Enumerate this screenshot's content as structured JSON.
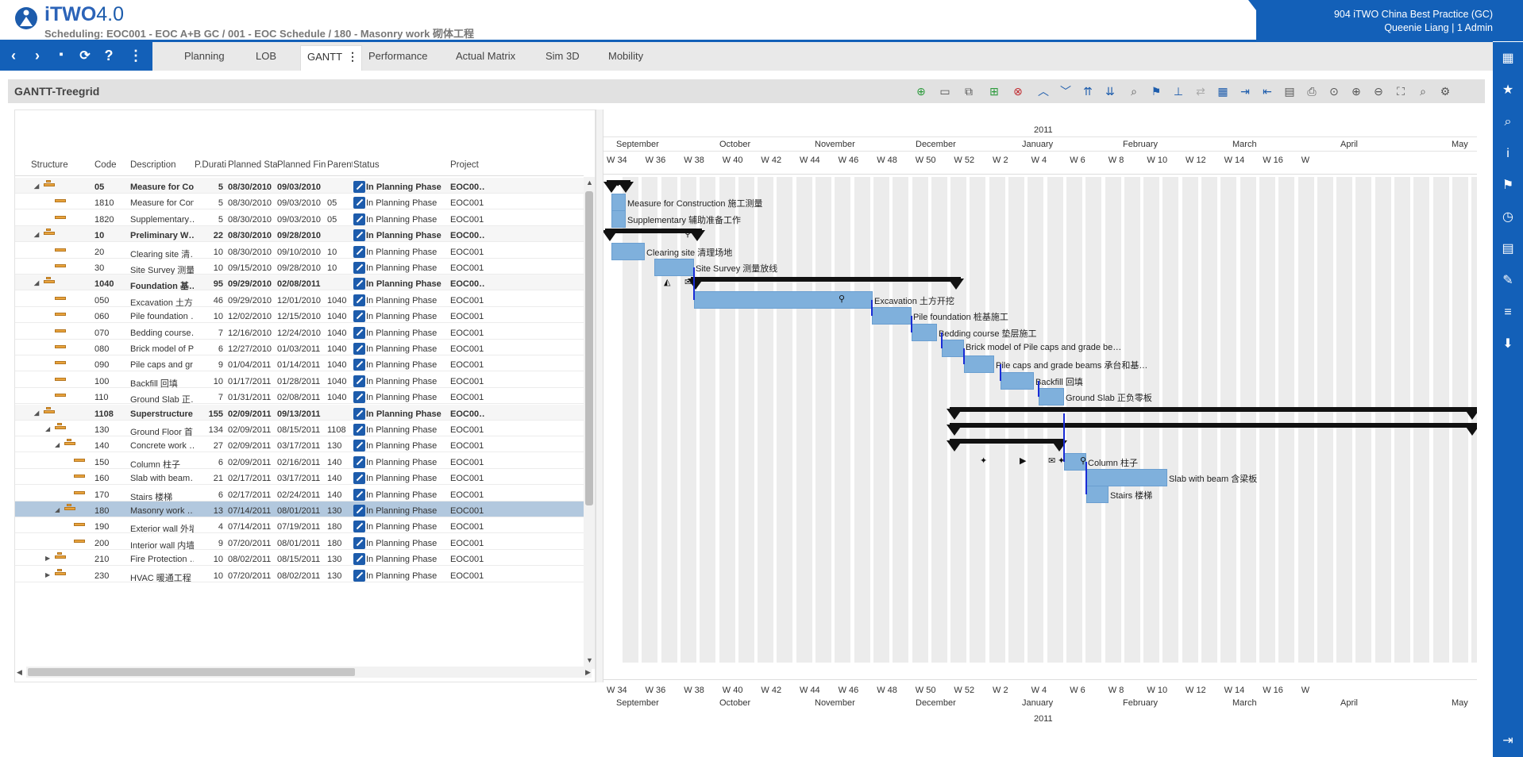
{
  "header": {
    "app_name": "iTWO",
    "app_version": "4.0",
    "breadcrumb": "Scheduling: EOC001 - EOC A+B GC / 001 - EOC Schedule / 180 - Masonry work 砌体工程",
    "company": "904 iTWO China Best Practice (GC)",
    "user": "Queenie Liang | 1 Admin"
  },
  "tabs": [
    "Planning",
    "LOB",
    "GANTT",
    "Performance",
    "Actual Matrix",
    "Sim 3D",
    "Mobility"
  ],
  "panel": {
    "title": "GANTT-Treegrid"
  },
  "grid": {
    "columns": [
      "Structure",
      "Code",
      "Description",
      "P.Duratio",
      "Planned Start",
      "Planned Finish",
      "Parent",
      "Status",
      "Project"
    ],
    "rows": [
      {
        "code": "05",
        "desc": "Measure for Co…",
        "dur": "5",
        "start": "08/30/2010",
        "finish": "09/03/2010",
        "parent": "",
        "status": "In Planning Phase",
        "project": "EOC00…"
      },
      {
        "code": "1810",
        "desc": "Measure for Con…",
        "dur": "5",
        "start": "08/30/2010",
        "finish": "09/03/2010",
        "parent": "05",
        "status": "In Planning Phase",
        "project": "EOC001"
      },
      {
        "code": "1820",
        "desc": "Supplementary…",
        "dur": "5",
        "start": "08/30/2010",
        "finish": "09/03/2010",
        "parent": "05",
        "status": "In Planning Phase",
        "project": "EOC001"
      },
      {
        "code": "10",
        "desc": "Preliminary W…",
        "dur": "22",
        "start": "08/30/2010",
        "finish": "09/28/2010",
        "parent": "",
        "status": "In Planning Phase",
        "project": "EOC00…"
      },
      {
        "code": "20",
        "desc": "Clearing site 清…",
        "dur": "10",
        "start": "08/30/2010",
        "finish": "09/10/2010",
        "parent": "10",
        "status": "In Planning Phase",
        "project": "EOC001"
      },
      {
        "code": "30",
        "desc": "Site Survey 测量…",
        "dur": "10",
        "start": "09/15/2010",
        "finish": "09/28/2010",
        "parent": "10",
        "status": "In Planning Phase",
        "project": "EOC001"
      },
      {
        "code": "1040",
        "desc": "Foundation 基…",
        "dur": "95",
        "start": "09/29/2010",
        "finish": "02/08/2011",
        "parent": "",
        "status": "In Planning Phase",
        "project": "EOC00…"
      },
      {
        "code": "050",
        "desc": "Excavation 土方…",
        "dur": "46",
        "start": "09/29/2010",
        "finish": "12/01/2010",
        "parent": "1040",
        "status": "In Planning Phase",
        "project": "EOC001"
      },
      {
        "code": "060",
        "desc": "Pile foundation …",
        "dur": "10",
        "start": "12/02/2010",
        "finish": "12/15/2010",
        "parent": "1040",
        "status": "In Planning Phase",
        "project": "EOC001"
      },
      {
        "code": "070",
        "desc": "Bedding course…",
        "dur": "7",
        "start": "12/16/2010",
        "finish": "12/24/2010",
        "parent": "1040",
        "status": "In Planning Phase",
        "project": "EOC001"
      },
      {
        "code": "080",
        "desc": "Brick model of P…",
        "dur": "6",
        "start": "12/27/2010",
        "finish": "01/03/2011",
        "parent": "1040",
        "status": "In Planning Phase",
        "project": "EOC001"
      },
      {
        "code": "090",
        "desc": "Pile caps and gr…",
        "dur": "9",
        "start": "01/04/2011",
        "finish": "01/14/2011",
        "parent": "1040",
        "status": "In Planning Phase",
        "project": "EOC001"
      },
      {
        "code": "100",
        "desc": "Backfill 回填",
        "dur": "10",
        "start": "01/17/2011",
        "finish": "01/28/2011",
        "parent": "1040",
        "status": "In Planning Phase",
        "project": "EOC001"
      },
      {
        "code": "110",
        "desc": "Ground Slab 正…",
        "dur": "7",
        "start": "01/31/2011",
        "finish": "02/08/2011",
        "parent": "1040",
        "status": "In Planning Phase",
        "project": "EOC001"
      },
      {
        "code": "1108",
        "desc": "Superstructure…",
        "dur": "155",
        "start": "02/09/2011",
        "finish": "09/13/2011",
        "parent": "",
        "status": "In Planning Phase",
        "project": "EOC00…"
      },
      {
        "code": "130",
        "desc": "Ground Floor 首…",
        "dur": "134",
        "start": "02/09/2011",
        "finish": "08/15/2011",
        "parent": "1108",
        "status": "In Planning Phase",
        "project": "EOC001"
      },
      {
        "code": "140",
        "desc": "Concrete work …",
        "dur": "27",
        "start": "02/09/2011",
        "finish": "03/17/2011",
        "parent": "130",
        "status": "In Planning Phase",
        "project": "EOC001"
      },
      {
        "code": "150",
        "desc": "Column 柱子",
        "dur": "6",
        "start": "02/09/2011",
        "finish": "02/16/2011",
        "parent": "140",
        "status": "In Planning Phase",
        "project": "EOC001"
      },
      {
        "code": "160",
        "desc": "Slab with beam…",
        "dur": "21",
        "start": "02/17/2011",
        "finish": "03/17/2011",
        "parent": "140",
        "status": "In Planning Phase",
        "project": "EOC001"
      },
      {
        "code": "170",
        "desc": "Stairs 楼梯",
        "dur": "6",
        "start": "02/17/2011",
        "finish": "02/24/2011",
        "parent": "140",
        "status": "In Planning Phase",
        "project": "EOC001"
      },
      {
        "code": "180",
        "desc": "Masonry work …",
        "dur": "13",
        "start": "07/14/2011",
        "finish": "08/01/2011",
        "parent": "130",
        "status": "In Planning Phase",
        "project": "EOC001"
      },
      {
        "code": "190",
        "desc": "Exterior wall 外墙",
        "dur": "4",
        "start": "07/14/2011",
        "finish": "07/19/2011",
        "parent": "180",
        "status": "In Planning Phase",
        "project": "EOC001"
      },
      {
        "code": "200",
        "desc": "Interior wall 内墙",
        "dur": "9",
        "start": "07/20/2011",
        "finish": "08/01/2011",
        "parent": "180",
        "status": "In Planning Phase",
        "project": "EOC001"
      },
      {
        "code": "210",
        "desc": "Fire Protection …",
        "dur": "10",
        "start": "08/02/2011",
        "finish": "08/15/2011",
        "parent": "130",
        "status": "In Planning Phase",
        "project": "EOC001"
      },
      {
        "code": "230",
        "desc": "HVAC 暖通工程",
        "dur": "10",
        "start": "07/20/2011",
        "finish": "08/02/2011",
        "parent": "130",
        "status": "In Planning Phase",
        "project": "EOC001"
      }
    ]
  },
  "gantt": {
    "year_label": "2011",
    "months": [
      "September",
      "October",
      "November",
      "December",
      "January",
      "February",
      "March",
      "April",
      "May"
    ],
    "weeks": [
      "W 34",
      "W 36",
      "W 38",
      "W 40",
      "W 42",
      "W 44",
      "W 46",
      "W 48",
      "W 50",
      "W 52",
      "W 2",
      "W 4",
      "W 6",
      "W 8",
      "W 10",
      "W 12",
      "W 14",
      "W 16",
      "W"
    ],
    "bar_labels": [
      "Measure for Construction 施工测量",
      "Supplementary 辅助准备工作",
      "Clearing site 清理场地",
      "Site Survey 测量放线",
      "Excavation 土方开挖",
      "Pile foundation 桩基施工",
      "Bedding course 垫层施工",
      "Brick model of Pile caps and grade be…",
      "Pile caps and grade beams 承台和基…",
      "Backfill 回填",
      "Ground Slab 正负零板",
      "Column 柱子",
      "Slab with beam 含梁板",
      "Stairs 楼梯"
    ]
  }
}
